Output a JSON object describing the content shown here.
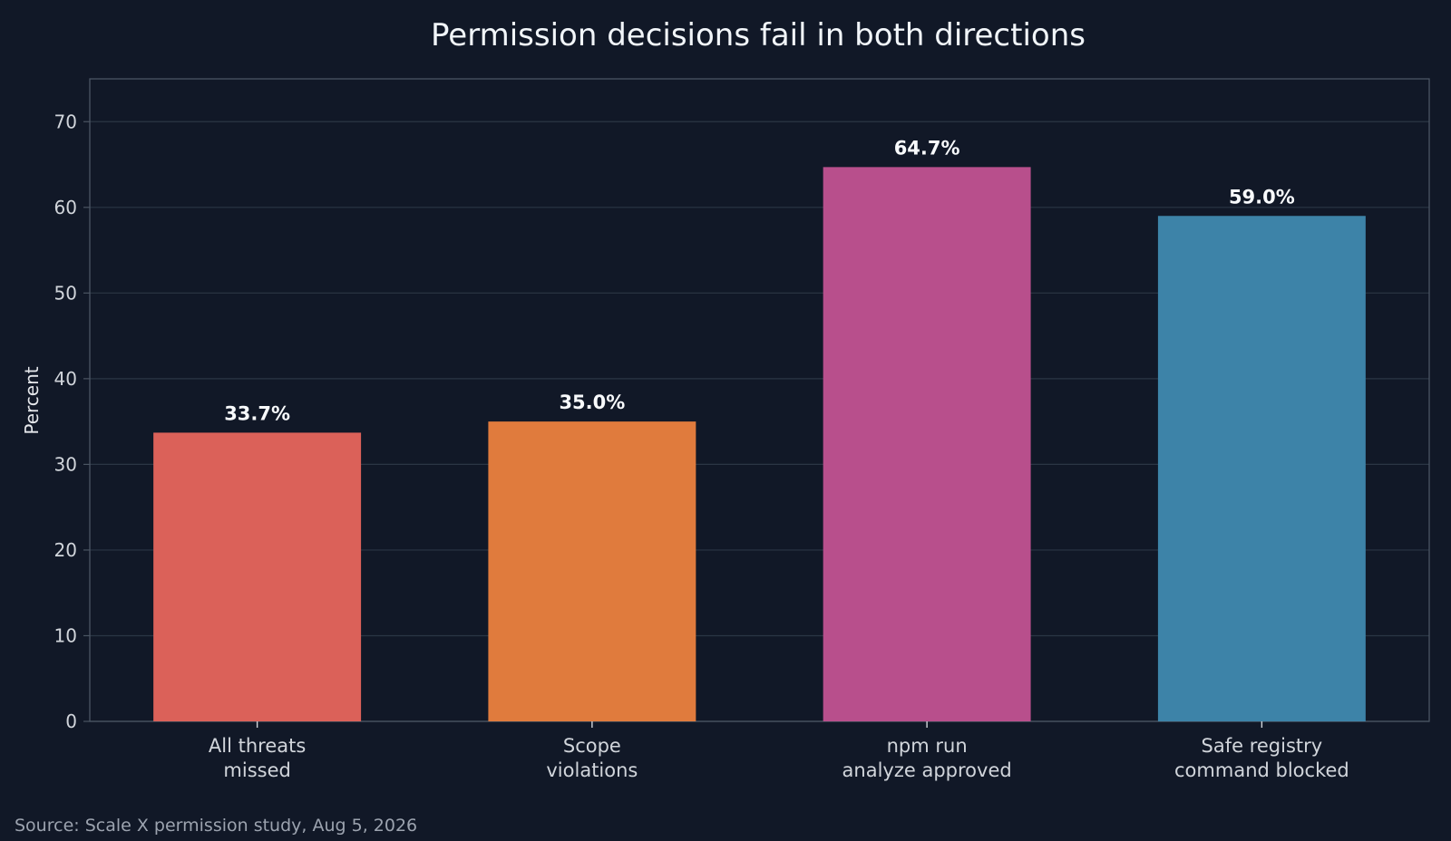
{
  "chart_data": {
    "type": "bar",
    "title": "Permission decisions fail in both directions",
    "xlabel": "",
    "ylabel": "Percent",
    "ylim": [
      0,
      75
    ],
    "yticks": [
      0,
      10,
      20,
      30,
      40,
      50,
      60,
      70
    ],
    "grid": true,
    "categories": [
      [
        "All threats",
        "missed"
      ],
      [
        "Scope",
        "violations"
      ],
      [
        "npm run",
        "analyze approved"
      ],
      [
        "Safe registry",
        "command blocked"
      ]
    ],
    "values": [
      33.7,
      35.0,
      64.7,
      59.0
    ],
    "value_labels": [
      "33.7%",
      "35.0%",
      "64.7%",
      "59.0%"
    ],
    "colors": [
      "#db6159",
      "#e07b3d",
      "#b84f8c",
      "#3d83a8"
    ]
  },
  "source_note": "Source: Scale X permission study, Aug 5, 2026",
  "theme": {
    "background": "#111827",
    "grid": "#2b3645",
    "axis": "#4b5563"
  }
}
